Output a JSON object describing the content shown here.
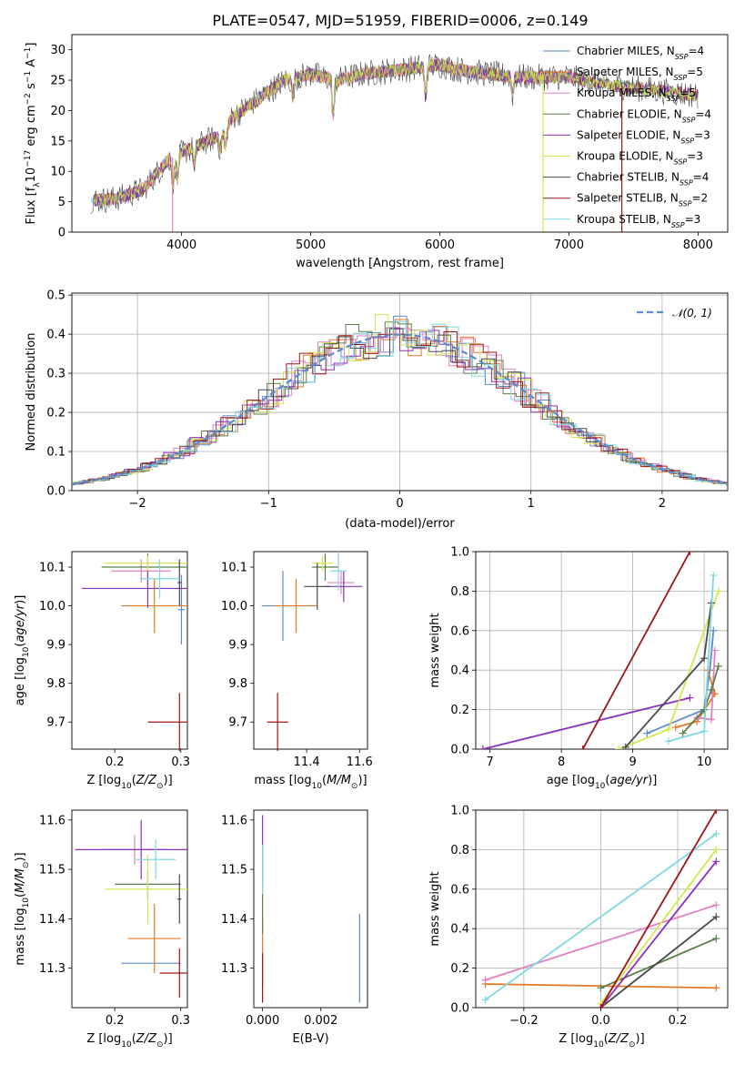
{
  "title": "PLATE=0547, MJD=51959, FIBERID=0006, z=0.149",
  "colors": [
    "#5c8ad1",
    "#e07a2a",
    "#e37fc0",
    "#597f4a",
    "#8d2fbe",
    "#d3e84f",
    "#4a4a4a",
    "#a01414",
    "#7fd7e0"
  ],
  "chart_data": [
    {
      "id": "spectrum",
      "type": "line",
      "xlabel": "wavelength [Angstrom, rest frame]",
      "ylabel": "Flux [f_λ10^-17 erg cm^-2 s^-1 A^-1]",
      "xlim": [
        3150,
        8230
      ],
      "ylim": [
        0,
        32.5
      ],
      "xticks": [
        4000,
        5000,
        6000,
        7000,
        8000
      ],
      "yticks": [
        0,
        5,
        10,
        15,
        20,
        25,
        30
      ],
      "grid": false,
      "legend": "top-right",
      "series": [
        {
          "name": "Chabrier MILES, N_SSP=4"
        },
        {
          "name": "Salpeter MILES, N_SSP=5"
        },
        {
          "name": "Kroupa MILES, N_SSP=5"
        },
        {
          "name": "Chabrier ELODIE, N_SSP=4"
        },
        {
          "name": "Salpeter ELODIE, N_SSP=3"
        },
        {
          "name": "Kroupa ELODIE, N_SSP=3"
        },
        {
          "name": "Chabrier STELIB, N_SSP=4"
        },
        {
          "name": "Salpeter STELIB, N_SSP=2"
        },
        {
          "name": "Kroupa STELIB, N_SSP=3"
        }
      ],
      "continuum": [
        [
          3300,
          5.2
        ],
        [
          3500,
          5.5
        ],
        [
          3700,
          7
        ],
        [
          3900,
          12
        ],
        [
          4100,
          14
        ],
        [
          4300,
          16
        ],
        [
          4400,
          19
        ],
        [
          4600,
          22
        ],
        [
          4800,
          25
        ],
        [
          5000,
          26
        ],
        [
          5200,
          25
        ],
        [
          5400,
          26
        ],
        [
          5600,
          26.5
        ],
        [
          5800,
          27
        ],
        [
          6000,
          27.5
        ],
        [
          6200,
          26.5
        ],
        [
          6400,
          26
        ],
        [
          6600,
          25.5
        ],
        [
          6800,
          25.5
        ],
        [
          7000,
          25.5
        ],
        [
          7200,
          24.5
        ],
        [
          7400,
          24
        ],
        [
          7600,
          23.5
        ],
        [
          7800,
          23
        ],
        [
          8000,
          22.5
        ]
      ],
      "drops": [
        {
          "x": 6800,
          "series": 5
        },
        {
          "x": 7410,
          "series": 7
        },
        {
          "x": 3930,
          "series": 2
        }
      ]
    },
    {
      "id": "residuals",
      "type": "histogram",
      "xlabel": "(data-model)/error",
      "ylabel": "Normed distribution",
      "xlim": [
        -2.5,
        2.5
      ],
      "ylim": [
        0,
        0.505
      ],
      "xticks": [
        -2,
        -1,
        0,
        1,
        2
      ],
      "yticks": [
        0.0,
        0.1,
        0.2,
        0.3,
        0.4,
        0.5
      ],
      "grid": true,
      "legend": "top-right",
      "legend_label": "𝒩(0, 1)",
      "bin_width": 0.1,
      "reference": "normal(0,1)"
    },
    {
      "id": "z-age",
      "type": "scatter",
      "xlabel": "Z [log10(Z/Z⊙)]",
      "ylabel": "age  [log10(age/yr)]",
      "xlim": [
        0.135,
        0.31
      ],
      "ylim": [
        9.63,
        10.14
      ],
      "xticks": [
        0.2,
        0.3
      ],
      "yticks": [
        9.7,
        9.8,
        9.9,
        10.0,
        10.1
      ],
      "points": [
        {
          "x": 0.301,
          "xe": 0.005,
          "y": 9.99,
          "ye": 0.09,
          "c": 0
        },
        {
          "x": 0.26,
          "xe": 0.05,
          "y": 10.0,
          "ye": 0.07,
          "c": 1
        },
        {
          "x": 0.24,
          "xe": 0.045,
          "y": 10.09,
          "ye": 0.03,
          "c": 2
        },
        {
          "x": 0.25,
          "xe": 0.07,
          "y": 10.1,
          "ye": 0.035,
          "c": 3
        },
        {
          "x": 0.25,
          "xe": 0.1,
          "y": 10.045,
          "ye": 0.05,
          "c": 4
        },
        {
          "x": 0.25,
          "xe": 0.065,
          "y": 10.11,
          "ye": 0.02,
          "c": 5
        },
        {
          "x": 0.298,
          "xe": 0.003,
          "y": 10.06,
          "ye": 0.06,
          "c": 6
        },
        {
          "x": 0.298,
          "xe": 0.048,
          "y": 9.7,
          "ye": 0.075,
          "c": 7
        },
        {
          "x": 0.268,
          "xe": 0.03,
          "y": 10.07,
          "ye": 0.05,
          "c": 8
        }
      ]
    },
    {
      "id": "mass-age",
      "type": "scatter",
      "xlabel": "mass [log10(M/M⊙)]",
      "ylabel": "",
      "xlim": [
        11.2,
        11.63
      ],
      "ylim": [
        9.63,
        10.14
      ],
      "xticks": [
        11.4,
        11.6
      ],
      "yticks": [
        9.7,
        9.8,
        9.9,
        10.0,
        10.1
      ],
      "points": [
        {
          "x": 11.31,
          "xe": 0.08,
          "y": 10.0,
          "ye": 0.09,
          "c": 0
        },
        {
          "x": 11.36,
          "xe": 0.08,
          "y": 10.0,
          "ye": 0.07,
          "c": 1
        },
        {
          "x": 11.53,
          "xe": 0.05,
          "y": 10.06,
          "ye": 0.03,
          "c": 2
        },
        {
          "x": 11.47,
          "xe": 0.05,
          "y": 10.1,
          "ye": 0.035,
          "c": 3
        },
        {
          "x": 11.54,
          "xe": 0.07,
          "y": 10.05,
          "ye": 0.04,
          "c": 4
        },
        {
          "x": 11.46,
          "xe": 0.04,
          "y": 10.11,
          "ye": 0.02,
          "c": 5
        },
        {
          "x": 11.44,
          "xe": 0.05,
          "y": 10.05,
          "ye": 0.06,
          "c": 6
        },
        {
          "x": 11.29,
          "xe": 0.04,
          "y": 9.7,
          "ye": 0.075,
          "c": 7
        },
        {
          "x": 11.52,
          "xe": 0.03,
          "y": 10.09,
          "ye": 0.05,
          "c": 8
        }
      ]
    },
    {
      "id": "age-weight",
      "type": "line",
      "xlabel": "age  [log10(age/yr)]",
      "ylabel": "mass weight",
      "xlim": [
        6.8,
        10.33
      ],
      "ylim": [
        0,
        1.0
      ],
      "xticks": [
        7,
        8,
        9,
        10
      ],
      "yticks": [
        0.0,
        0.2,
        0.4,
        0.6,
        0.8,
        1.0
      ],
      "grid": true,
      "series": [
        {
          "c": 0,
          "pts": [
            [
              9.2,
              0.08
            ],
            [
              10.0,
              0.2
            ],
            [
              10.08,
              0.4
            ],
            [
              10.13,
              0.6
            ]
          ]
        },
        {
          "c": 1,
          "pts": [
            [
              9.6,
              0.11
            ],
            [
              9.9,
              0.14
            ],
            [
              10.15,
              0.28
            ],
            [
              10.05,
              0.4
            ]
          ]
        },
        {
          "c": 2,
          "pts": [
            [
              9.9,
              0.16
            ],
            [
              10.1,
              0.15
            ],
            [
              10.15,
              0.5
            ]
          ]
        },
        {
          "c": 3,
          "pts": [
            [
              9.7,
              0.08
            ],
            [
              10.0,
              0.2
            ],
            [
              10.1,
              0.3
            ],
            [
              10.2,
              0.42
            ]
          ]
        },
        {
          "c": 4,
          "pts": [
            [
              6.9,
              0.0
            ],
            [
              9.8,
              0.26
            ]
          ]
        },
        {
          "c": 5,
          "pts": [
            [
              8.8,
              0.0
            ],
            [
              9.5,
              0.1
            ],
            [
              10.2,
              0.8
            ]
          ]
        },
        {
          "c": 6,
          "pts": [
            [
              8.9,
              0.01
            ],
            [
              10.0,
              0.46
            ],
            [
              10.1,
              0.74
            ]
          ]
        },
        {
          "c": 7,
          "pts": [
            [
              8.3,
              0.0
            ],
            [
              9.8,
              1.0
            ]
          ]
        },
        {
          "c": 8,
          "pts": [
            [
              9.5,
              0.04
            ],
            [
              10.0,
              0.09
            ],
            [
              10.13,
              0.88
            ]
          ]
        }
      ]
    },
    {
      "id": "z-mass",
      "type": "scatter",
      "xlabel": "Z [log10(Z/Z⊙)]",
      "ylabel": "mass [log10(M/M⊙)]",
      "xlim": [
        0.135,
        0.31
      ],
      "ylim": [
        11.22,
        11.62
      ],
      "xticks": [
        0.2,
        0.3
      ],
      "yticks": [
        11.3,
        11.4,
        11.5,
        11.6
      ],
      "points": [
        {
          "x": 0.255,
          "xe": 0.045,
          "y": 11.31,
          "ye": 0.0,
          "c": 0
        },
        {
          "x": 0.26,
          "xe": 0.04,
          "y": 11.36,
          "ye": 0.07,
          "c": 1
        },
        {
          "x": 0.23,
          "xe": 0.045,
          "y": 11.54,
          "ye": 0.03,
          "c": 2
        },
        {
          "x": 0.25,
          "xe": 0.05,
          "y": 11.47,
          "ye": 0.03,
          "c": 3
        },
        {
          "x": 0.24,
          "xe": 0.1,
          "y": 11.54,
          "ye": 0.06,
          "c": 4
        },
        {
          "x": 0.25,
          "xe": 0.065,
          "y": 11.46,
          "ye": 0.07,
          "c": 5
        },
        {
          "x": 0.298,
          "xe": 0.003,
          "y": 11.44,
          "ye": 0.05,
          "c": 6
        },
        {
          "x": 0.298,
          "xe": 0.03,
          "y": 11.29,
          "ye": 0.05,
          "c": 7
        },
        {
          "x": 0.262,
          "xe": 0.03,
          "y": 11.52,
          "ye": 0.04,
          "c": 8
        }
      ]
    },
    {
      "id": "ebv-mass",
      "type": "scatter",
      "xlabel": "E(B-V)",
      "ylabel": "",
      "xlim": [
        -0.0003,
        0.0036
      ],
      "ylim": [
        11.22,
        11.62
      ],
      "xticks": [
        0.0,
        0.002
      ],
      "xticklabels": [
        "0.000",
        "0.002"
      ],
      "yticks": [
        11.3,
        11.4,
        11.5,
        11.6
      ],
      "points": [
        {
          "x": 0.00333,
          "xe": 0.0,
          "y": 11.32,
          "ye": 0.09,
          "c": 0
        },
        {
          "x": 0.0,
          "xe": 0.0,
          "y": 11.33,
          "ye": 0.07,
          "c": 1
        },
        {
          "x": 0.0,
          "xe": 0.0,
          "y": 11.46,
          "ye": 0.09,
          "c": 3
        },
        {
          "x": 0.0,
          "xe": 0.0,
          "y": 11.54,
          "ye": 0.07,
          "c": 4
        },
        {
          "x": 0.0,
          "xe": 0.0,
          "y": 11.28,
          "ye": 0.05,
          "c": 7
        },
        {
          "x": 0.0,
          "xe": 0.0,
          "y": 11.5,
          "ye": 0.05,
          "c": 8
        }
      ]
    },
    {
      "id": "z-weight",
      "type": "line",
      "xlabel": "Z [log10(Z/Z⊙)]",
      "ylabel": "mass weight",
      "xlim": [
        -0.325,
        0.33
      ],
      "ylim": [
        0,
        1.0
      ],
      "xticks": [
        -0.2,
        0.0,
        0.2
      ],
      "xticklabels": [
        "−0.2",
        "0.0",
        "0.2"
      ],
      "yticks": [
        0.0,
        0.2,
        0.4,
        0.6,
        0.8,
        1.0
      ],
      "grid": true,
      "series": [
        {
          "c": 1,
          "pts": [
            [
              -0.3,
              0.12
            ],
            [
              0.3,
              0.1
            ]
          ]
        },
        {
          "c": 2,
          "pts": [
            [
              -0.3,
              0.14
            ],
            [
              0.3,
              0.52
            ]
          ]
        },
        {
          "c": 8,
          "pts": [
            [
              -0.3,
              0.04
            ],
            [
              0.3,
              0.88
            ]
          ]
        },
        {
          "c": 3,
          "pts": [
            [
              0.0,
              0.1
            ],
            [
              0.3,
              0.35
            ]
          ]
        },
        {
          "c": 6,
          "pts": [
            [
              0.0,
              0.0
            ],
            [
              0.3,
              0.46
            ]
          ]
        },
        {
          "c": 4,
          "pts": [
            [
              0.0,
              0.0
            ],
            [
              0.3,
              0.74
            ]
          ]
        },
        {
          "c": 5,
          "pts": [
            [
              0.0,
              0.02
            ],
            [
              0.3,
              0.8
            ]
          ]
        },
        {
          "c": 7,
          "pts": [
            [
              0.0,
              0.0
            ],
            [
              0.3,
              1.0
            ]
          ]
        }
      ]
    }
  ]
}
